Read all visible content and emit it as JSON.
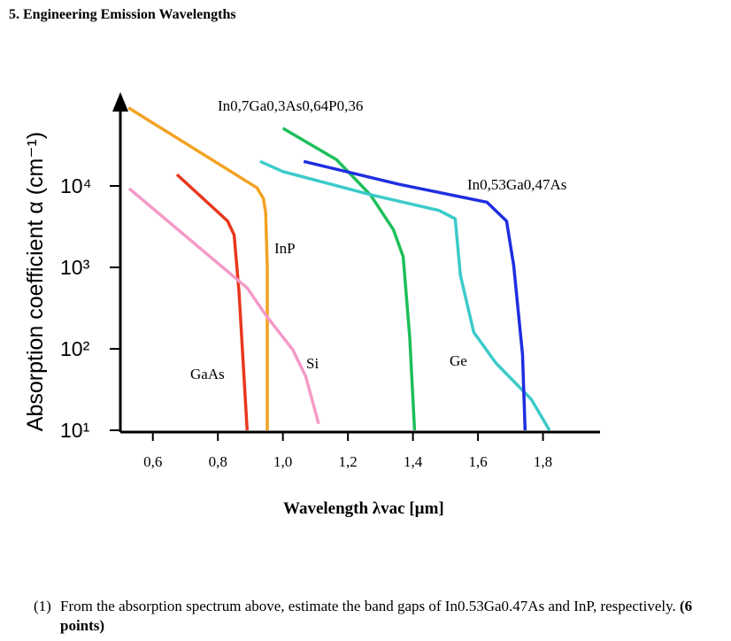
{
  "heading": "5. Engineering Emission Wavelengths",
  "chart_data": {
    "type": "line",
    "x_label": "Wavelength λvac [µm]",
    "y_label": "Absorption coefficient α (cm⁻¹)",
    "log_y": true,
    "xlim": [
      0.5,
      1.97
    ],
    "ylim": [
      10,
      100000
    ],
    "xticks": [
      {
        "value": 0.6,
        "label": "0,6"
      },
      {
        "value": 0.8,
        "label": "0,8"
      },
      {
        "value": 1.0,
        "label": "1,0"
      },
      {
        "value": 1.2,
        "label": "1,2"
      },
      {
        "value": 1.4,
        "label": "1,4"
      },
      {
        "value": 1.6,
        "label": "1,6"
      },
      {
        "value": 1.8,
        "label": "1,8"
      }
    ],
    "yticks": [
      {
        "value": 10,
        "label": "10¹"
      },
      {
        "value": 100,
        "label": "10²"
      },
      {
        "value": 1000,
        "label": "10³"
      },
      {
        "value": 10000,
        "label": "10⁴"
      }
    ],
    "series": [
      {
        "name": "InP",
        "color": "#f2a324",
        "x": [
          0.525,
          0.92,
          0.94,
          0.947,
          0.952,
          0.952
        ],
        "values": [
          91000,
          9500,
          7000,
          4700,
          1000,
          10
        ]
      },
      {
        "name": "GaAs",
        "color": "#e8381e",
        "x": [
          0.674,
          0.83,
          0.85,
          0.865,
          0.89
        ],
        "values": [
          13800,
          3700,
          2500,
          500,
          10
        ]
      },
      {
        "name": "Si",
        "color": "#f59ac8",
        "x": [
          0.527,
          0.89,
          0.947,
          1.03,
          1.07,
          1.11
        ],
        "values": [
          9300,
          560,
          260,
          98,
          46,
          12
        ]
      },
      {
        "name": "In0,7Ga0,3As0,64P0,36",
        "color": "#1dbf5a",
        "x": [
          1.0,
          1.165,
          1.27,
          1.34,
          1.37,
          1.39,
          1.405
        ],
        "values": [
          51000,
          21000,
          7700,
          2900,
          1350,
          140,
          10
        ]
      },
      {
        "name": "Ge",
        "color": "#3ccaca",
        "x": [
          0.93,
          1.0,
          1.27,
          1.48,
          1.53,
          1.546,
          1.587,
          1.655,
          1.764,
          1.82
        ],
        "values": [
          20000,
          15000,
          7800,
          5000,
          3950,
          800,
          160,
          67,
          24,
          10
        ]
      },
      {
        "name": "In0,53Ga0,47As",
        "color": "#1f2ee0",
        "x": [
          1.064,
          1.356,
          1.628,
          1.688,
          1.71,
          1.737,
          1.745
        ],
        "values": [
          20000,
          10500,
          6300,
          3700,
          1050,
          86,
          10
        ]
      }
    ]
  },
  "question": {
    "number": "(1)",
    "text": "From the absorption spectrum above, estimate the band gaps of In0.53Ga0.47As and InP, respectively.",
    "points": "(6 points)"
  }
}
